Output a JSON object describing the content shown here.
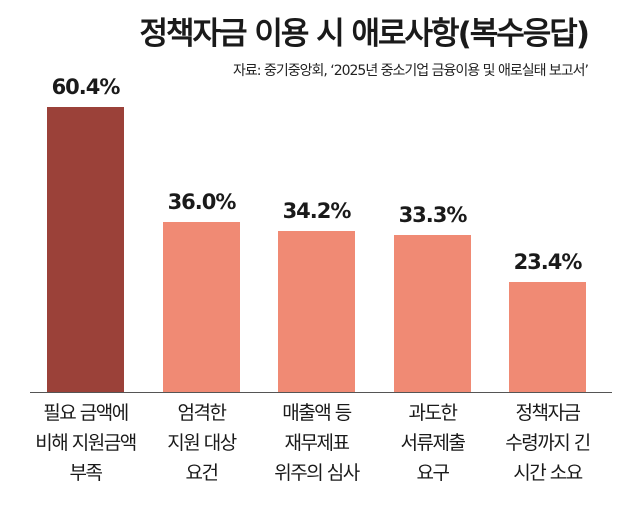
{
  "title": "정책자금 이용 시 애로사항(복수응답)",
  "source": "자료: 중기중앙회, ‘2025년 중소기업 금융이용 및 애로실태 보고서’",
  "colors": {
    "highlight": "#9b4139",
    "normal": "#f08a74",
    "baseline": "#555555"
  },
  "chart_data": {
    "type": "bar",
    "title": "정책자금 이용 시 애로사항(복수응답)",
    "subtitle": "자료: 중기중앙회, ‘2025년 중소기업 금융이용 및 애로실태 보고서’",
    "categories": [
      "필요 금액에 비해 지원금액 부족",
      "엄격한 지원 대상 요건",
      "매출액 등 재무제표 위주의 심사",
      "과도한 서류제출 요구",
      "정책자금 수령까지 긴 시간 소요"
    ],
    "values": [
      60.4,
      36.0,
      34.2,
      33.3,
      23.4
    ],
    "value_labels": [
      "60.4%",
      "36.0%",
      "34.2%",
      "33.3%",
      "23.4%"
    ],
    "xlabel": "",
    "ylabel": "",
    "unit": "%",
    "grid": false,
    "legend": null
  },
  "bars": [
    {
      "label": "60.4%",
      "value": 60.4,
      "lines": [
        "필요 금액에",
        "비해 지원금액",
        "부족"
      ]
    },
    {
      "label": "36.0%",
      "value": 36.0,
      "lines": [
        "엄격한",
        "지원 대상",
        "요건"
      ]
    },
    {
      "label": "34.2%",
      "value": 34.2,
      "lines": [
        "매출액 등",
        "재무제표",
        "위주의 심사"
      ]
    },
    {
      "label": "33.3%",
      "value": 33.3,
      "lines": [
        "과도한",
        "서류제출",
        "요구"
      ]
    },
    {
      "label": "23.4%",
      "value": 23.4,
      "lines": [
        "정책자금",
        "수령까지 긴",
        "시간 소요"
      ]
    }
  ]
}
